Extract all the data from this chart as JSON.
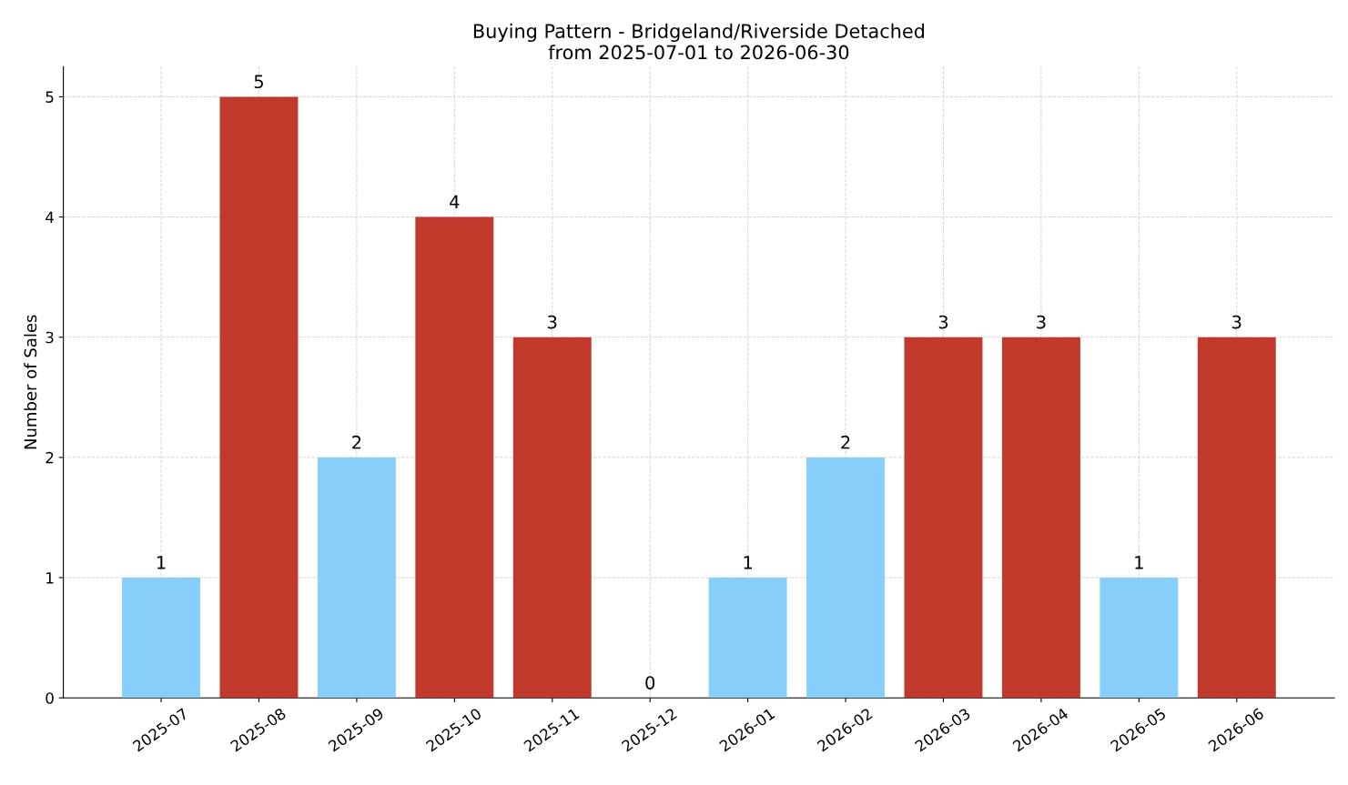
{
  "chart_data": {
    "type": "bar",
    "title": "Buying Pattern - Bridgeland/Riverside Detached",
    "subtitle": "from 2025-07-01 to 2026-06-30",
    "ylabel": "Number of Sales",
    "categories": [
      "2025-07",
      "2025-08",
      "2025-09",
      "2025-10",
      "2025-11",
      "2025-12",
      "2026-01",
      "2026-02",
      "2026-03",
      "2026-04",
      "2026-05",
      "2026-06"
    ],
    "values": [
      1,
      5,
      2,
      4,
      3,
      0,
      1,
      2,
      3,
      3,
      1,
      3
    ],
    "colors": [
      "#87cefa",
      "#c0392b",
      "#87cefa",
      "#c0392b",
      "#c0392b",
      "#87cefa",
      "#87cefa",
      "#87cefa",
      "#c0392b",
      "#c0392b",
      "#87cefa",
      "#c0392b"
    ],
    "ylim": [
      0,
      5.25
    ],
    "yticks": [
      0,
      1,
      2,
      3,
      4,
      5
    ],
    "grid": true,
    "data_labels": true
  }
}
